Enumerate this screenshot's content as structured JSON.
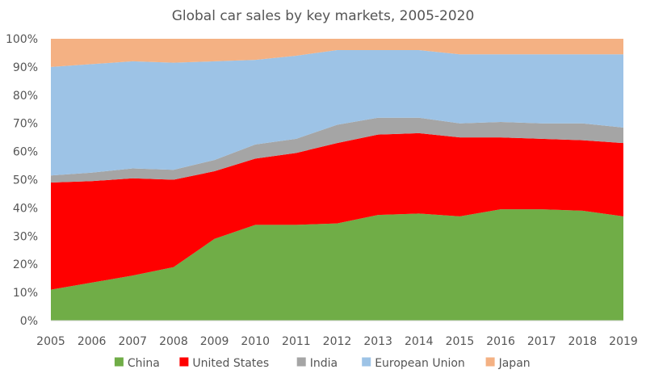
{
  "chart_data": {
    "type": "area",
    "stacked": true,
    "percent_stacked": true,
    "title": "Global car sales by key markets, 2005-2020",
    "xlabel": "",
    "ylabel": "",
    "x": [
      "2005",
      "2006",
      "2007",
      "2008",
      "2009",
      "2010",
      "2011",
      "2012",
      "2013",
      "2014",
      "2015",
      "2016",
      "2017",
      "2018",
      "2019"
    ],
    "ylim": [
      0,
      100
    ],
    "y_ticks": [
      "0%",
      "10%",
      "20%",
      "30%",
      "40%",
      "50%",
      "60%",
      "70%",
      "80%",
      "90%",
      "100%"
    ],
    "grid": false,
    "legend_position": "bottom",
    "series": [
      {
        "name": "China",
        "color": "#70ad47",
        "values": [
          11,
          13.5,
          16,
          19,
          29,
          34,
          34,
          34.5,
          37.5,
          38,
          37,
          39.5,
          39.5,
          39,
          37
        ]
      },
      {
        "name": "United States",
        "color": "#ff0000",
        "values": [
          38,
          36,
          34.5,
          31,
          24,
          23.5,
          25.5,
          28.5,
          28.5,
          28.5,
          28,
          25.5,
          25,
          25,
          26
        ]
      },
      {
        "name": "India",
        "color": "#a5a5a5",
        "values": [
          2.5,
          3,
          3.5,
          3.5,
          4,
          5,
          5,
          6.5,
          6,
          5.5,
          5,
          5.5,
          5.5,
          6,
          5.5
        ]
      },
      {
        "name": "European Union",
        "color": "#9dc3e6",
        "values": [
          38.5,
          38.5,
          38,
          38,
          35,
          30,
          29.5,
          26.5,
          24,
          24,
          24.5,
          24,
          24.5,
          24.5,
          26
        ]
      },
      {
        "name": "Japan",
        "color": "#f4b183",
        "values": [
          10,
          9,
          8,
          8.5,
          8,
          7.5,
          6,
          4,
          4,
          4,
          5.5,
          5.5,
          5.5,
          5.5,
          5.5
        ]
      }
    ]
  }
}
